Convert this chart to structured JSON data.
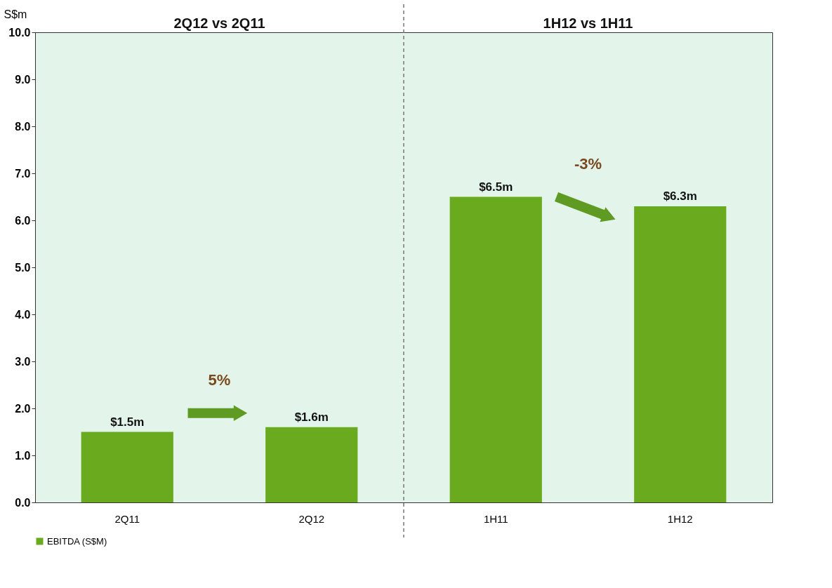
{
  "chart_data": {
    "type": "bar",
    "ylabel": "S$m",
    "categories": [
      "2Q11",
      "2Q12",
      "1H11",
      "1H12"
    ],
    "series": [
      {
        "name": "EBITDA (S$M)",
        "color": "#6aaa1e",
        "values": [
          1.5,
          1.6,
          6.5,
          6.3
        ],
        "value_labels": [
          "$1.5m",
          "$1.6m",
          "$6.5m",
          "$6.3m"
        ]
      }
    ],
    "ylim": [
      0,
      10
    ],
    "yticks": [
      {
        "value": 0,
        "label": "0.0"
      },
      {
        "value": 1,
        "label": "1.0"
      },
      {
        "value": 2,
        "label": "2.0"
      },
      {
        "value": 3,
        "label": "3.0"
      },
      {
        "value": 4,
        "label": "4.0"
      },
      {
        "value": 5,
        "label": "5.0"
      },
      {
        "value": 6,
        "label": "6.0"
      },
      {
        "value": 7,
        "label": "7.0"
      },
      {
        "value": 8,
        "label": "8.0"
      },
      {
        "value": 9,
        "label": "9.0"
      },
      {
        "value": 10,
        "label": "10.0"
      }
    ],
    "annotations": [
      "2Q12 vs 2Q11",
      "1H12 vs 1H11",
      "5%",
      "-3%"
    ],
    "grid": false,
    "legend": "bottom"
  }
}
